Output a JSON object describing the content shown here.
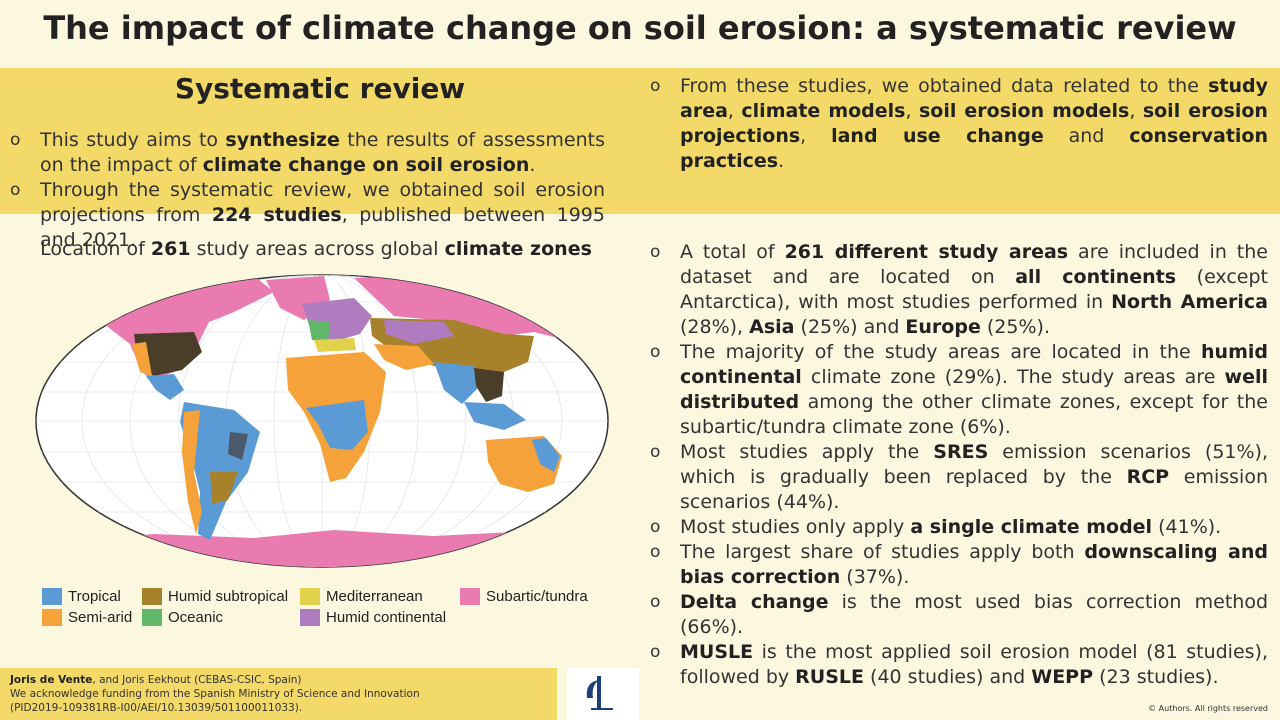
{
  "title": "The impact of climate change on soil erosion: a systematic review",
  "section": {
    "heading": "Systematic review",
    "bullet1": {
      "p1": "This study aims to ",
      "b1": "synthesize",
      "p2": " the results of assessments on the impact of ",
      "b2": "climate change on soil erosion",
      "p3": "."
    },
    "bullet2": {
      "p1": "Through the systematic review, we obtained soil erosion projections from ",
      "b1": "224 studies",
      "p2": ", published between 1995 and 2021."
    },
    "bullet3": {
      "p1": "From these studies, we obtained data related to the ",
      "b1": "study area",
      "p2": ", ",
      "b2": "climate models",
      "p3": ", ",
      "b3": "soil erosion models",
      "p4": ", ",
      "b4": "soil erosion projections",
      "p5": ", ",
      "b5": "land use change",
      "p6": " and ",
      "b6": "conservation practices",
      "p7": "."
    }
  },
  "map": {
    "caption": {
      "p1": "Location of ",
      "b1": "261",
      "p2": " study areas across global ",
      "b2": "climate zones"
    },
    "legend": [
      {
        "label": "Tropical",
        "color": "#5b9bd5"
      },
      {
        "label": "Humid subtropical",
        "color": "#a8822a"
      },
      {
        "label": "Mediterranean",
        "color": "#e2d14a"
      },
      {
        "label": "Subartic/tundra",
        "color": "#e97bb0"
      },
      {
        "label": "Semi-arid",
        "color": "#f6a23a"
      },
      {
        "label": "Oceanic",
        "color": "#62b86a"
      },
      {
        "label": "Humid continental",
        "color": "#b07cc0"
      }
    ]
  },
  "findings": {
    "f1": {
      "p1": "A total of ",
      "b1": "261 different study areas",
      "p2": " are included in the dataset and are located on ",
      "b2": "all continents",
      "p3": " (except Antarctica), with most studies performed in ",
      "b3": "North America",
      "p4": " (28%), ",
      "b4": "Asia",
      "p5": " (25%) and ",
      "b5": "Europe",
      "p6": " (25%)."
    },
    "f2": {
      "p1": "The majority of the study areas are located in the ",
      "b1": "humid continental",
      "p2": " climate zone (29%). The study areas are ",
      "b2": "well distributed",
      "p3": " among the other climate zones, except for the subartic/tundra climate zone (6%)."
    },
    "f3": {
      "p1": "Most studies apply the ",
      "b1": "SRES",
      "p2": " emission scenarios (51%), which is gradually been replaced by the ",
      "b2": "RCP",
      "p3": " emission scenarios (44%)."
    },
    "f4": {
      "p1": "Most studies only apply ",
      "b1": "a single climate model",
      "p2": " (41%)."
    },
    "f5": {
      "p1": "The largest share of studies apply both ",
      "b1": "downscaling and bias correction",
      "p2": " (37%)."
    },
    "f6": {
      "b1": "Delta change",
      "p1": " is the most used bias correction method (66%)."
    },
    "f7": {
      "b1": "MUSLE",
      "p1": " is the most applied soil erosion model (81 studies), followed by ",
      "b2": "RUSLE",
      "p2": " (40 studies) and ",
      "b3": "WEPP",
      "p3": " (23 studies)."
    }
  },
  "footer": {
    "authors_bold": "Joris de Vente",
    "authors_rest": ", and Joris Eekhout (CEBAS-CSIC, Spain)",
    "funding1": "We acknowledge funding from the Spanish Ministry of Science and Innovation",
    "funding2": "(PID2019-109381RB-I00/AEI/10.13039/501100011033).",
    "copyright": "© Authors. All rights reserved"
  }
}
